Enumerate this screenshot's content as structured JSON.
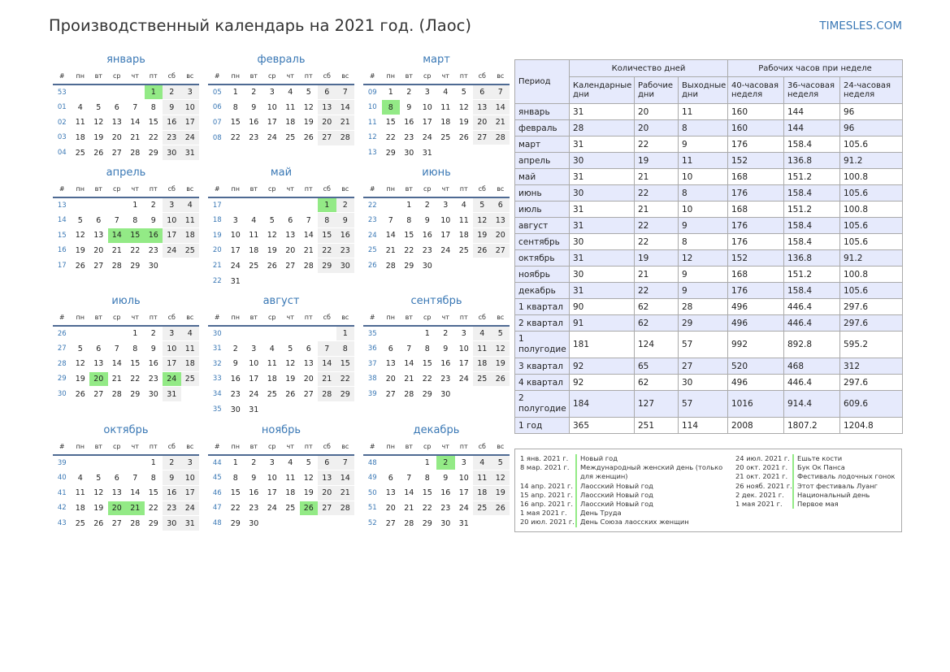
{
  "header": {
    "title": "Производственный календарь на 2021 год. (Лаос)",
    "site": "TIMESLES.COM"
  },
  "weekday_headers": [
    "#",
    "пн",
    "вт",
    "ср",
    "чт",
    "пт",
    "сб",
    "вс"
  ],
  "months": [
    {
      "name": "январь",
      "weeks": [
        {
          "wk": "53",
          "days": [
            "",
            "",
            "",
            "",
            "1",
            "2",
            "3"
          ]
        },
        {
          "wk": "01",
          "days": [
            "4",
            "5",
            "6",
            "7",
            "8",
            "9",
            "10"
          ]
        },
        {
          "wk": "02",
          "days": [
            "11",
            "12",
            "13",
            "14",
            "15",
            "16",
            "17"
          ]
        },
        {
          "wk": "03",
          "days": [
            "18",
            "19",
            "20",
            "21",
            "22",
            "23",
            "24"
          ]
        },
        {
          "wk": "04",
          "days": [
            "25",
            "26",
            "27",
            "28",
            "29",
            "30",
            "31"
          ]
        }
      ],
      "holidays": [
        "1"
      ]
    },
    {
      "name": "февраль",
      "weeks": [
        {
          "wk": "05",
          "days": [
            "1",
            "2",
            "3",
            "4",
            "5",
            "6",
            "7"
          ]
        },
        {
          "wk": "06",
          "days": [
            "8",
            "9",
            "10",
            "11",
            "12",
            "13",
            "14"
          ]
        },
        {
          "wk": "07",
          "days": [
            "15",
            "16",
            "17",
            "18",
            "19",
            "20",
            "21"
          ]
        },
        {
          "wk": "08",
          "days": [
            "22",
            "23",
            "24",
            "25",
            "26",
            "27",
            "28"
          ]
        }
      ],
      "holidays": []
    },
    {
      "name": "март",
      "weeks": [
        {
          "wk": "09",
          "days": [
            "1",
            "2",
            "3",
            "4",
            "5",
            "6",
            "7"
          ]
        },
        {
          "wk": "10",
          "days": [
            "8",
            "9",
            "10",
            "11",
            "12",
            "13",
            "14"
          ]
        },
        {
          "wk": "11",
          "days": [
            "15",
            "16",
            "17",
            "18",
            "19",
            "20",
            "21"
          ]
        },
        {
          "wk": "12",
          "days": [
            "22",
            "23",
            "24",
            "25",
            "26",
            "27",
            "28"
          ]
        },
        {
          "wk": "13",
          "days": [
            "29",
            "30",
            "31",
            "",
            "",
            "",
            ""
          ]
        }
      ],
      "holidays": [
        "8"
      ]
    },
    {
      "name": "апрель",
      "weeks": [
        {
          "wk": "13",
          "days": [
            "",
            "",
            "",
            "1",
            "2",
            "3",
            "4"
          ]
        },
        {
          "wk": "14",
          "days": [
            "5",
            "6",
            "7",
            "8",
            "9",
            "10",
            "11"
          ]
        },
        {
          "wk": "15",
          "days": [
            "12",
            "13",
            "14",
            "15",
            "16",
            "17",
            "18"
          ]
        },
        {
          "wk": "16",
          "days": [
            "19",
            "20",
            "21",
            "22",
            "23",
            "24",
            "25"
          ]
        },
        {
          "wk": "17",
          "days": [
            "26",
            "27",
            "28",
            "29",
            "30",
            "",
            ""
          ]
        }
      ],
      "holidays": [
        "14",
        "15",
        "16"
      ]
    },
    {
      "name": "май",
      "weeks": [
        {
          "wk": "17",
          "days": [
            "",
            "",
            "",
            "",
            "",
            "1",
            "2"
          ]
        },
        {
          "wk": "18",
          "days": [
            "3",
            "4",
            "5",
            "6",
            "7",
            "8",
            "9"
          ]
        },
        {
          "wk": "19",
          "days": [
            "10",
            "11",
            "12",
            "13",
            "14",
            "15",
            "16"
          ]
        },
        {
          "wk": "20",
          "days": [
            "17",
            "18",
            "19",
            "20",
            "21",
            "22",
            "23"
          ]
        },
        {
          "wk": "21",
          "days": [
            "24",
            "25",
            "26",
            "27",
            "28",
            "29",
            "30"
          ]
        },
        {
          "wk": "22",
          "days": [
            "31",
            "",
            "",
            "",
            "",
            "",
            ""
          ]
        }
      ],
      "holidays": [
        "1"
      ]
    },
    {
      "name": "июнь",
      "weeks": [
        {
          "wk": "22",
          "days": [
            "",
            "1",
            "2",
            "3",
            "4",
            "5",
            "6"
          ]
        },
        {
          "wk": "23",
          "days": [
            "7",
            "8",
            "9",
            "10",
            "11",
            "12",
            "13"
          ]
        },
        {
          "wk": "24",
          "days": [
            "14",
            "15",
            "16",
            "17",
            "18",
            "19",
            "20"
          ]
        },
        {
          "wk": "25",
          "days": [
            "21",
            "22",
            "23",
            "24",
            "25",
            "26",
            "27"
          ]
        },
        {
          "wk": "26",
          "days": [
            "28",
            "29",
            "30",
            "",
            "",
            "",
            ""
          ]
        }
      ],
      "holidays": []
    },
    {
      "name": "июль",
      "weeks": [
        {
          "wk": "26",
          "days": [
            "",
            "",
            "",
            "1",
            "2",
            "3",
            "4"
          ]
        },
        {
          "wk": "27",
          "days": [
            "5",
            "6",
            "7",
            "8",
            "9",
            "10",
            "11"
          ]
        },
        {
          "wk": "28",
          "days": [
            "12",
            "13",
            "14",
            "15",
            "16",
            "17",
            "18"
          ]
        },
        {
          "wk": "29",
          "days": [
            "19",
            "20",
            "21",
            "22",
            "23",
            "24",
            "25"
          ]
        },
        {
          "wk": "30",
          "days": [
            "26",
            "27",
            "28",
            "29",
            "30",
            "31",
            ""
          ]
        }
      ],
      "holidays": [
        "20",
        "24"
      ]
    },
    {
      "name": "август",
      "weeks": [
        {
          "wk": "30",
          "days": [
            "",
            "",
            "",
            "",
            "",
            "",
            "1"
          ]
        },
        {
          "wk": "31",
          "days": [
            "2",
            "3",
            "4",
            "5",
            "6",
            "7",
            "8"
          ]
        },
        {
          "wk": "32",
          "days": [
            "9",
            "10",
            "11",
            "12",
            "13",
            "14",
            "15"
          ]
        },
        {
          "wk": "33",
          "days": [
            "16",
            "17",
            "18",
            "19",
            "20",
            "21",
            "22"
          ]
        },
        {
          "wk": "34",
          "days": [
            "23",
            "24",
            "25",
            "26",
            "27",
            "28",
            "29"
          ]
        },
        {
          "wk": "35",
          "days": [
            "30",
            "31",
            "",
            "",
            "",
            "",
            ""
          ]
        }
      ],
      "holidays": []
    },
    {
      "name": "сентябрь",
      "weeks": [
        {
          "wk": "35",
          "days": [
            "",
            "",
            "1",
            "2",
            "3",
            "4",
            "5"
          ]
        },
        {
          "wk": "36",
          "days": [
            "6",
            "7",
            "8",
            "9",
            "10",
            "11",
            "12"
          ]
        },
        {
          "wk": "37",
          "days": [
            "13",
            "14",
            "15",
            "16",
            "17",
            "18",
            "19"
          ]
        },
        {
          "wk": "38",
          "days": [
            "20",
            "21",
            "22",
            "23",
            "24",
            "25",
            "26"
          ]
        },
        {
          "wk": "39",
          "days": [
            "27",
            "28",
            "29",
            "30",
            "",
            "",
            ""
          ]
        }
      ],
      "holidays": []
    },
    {
      "name": "октябрь",
      "weeks": [
        {
          "wk": "39",
          "days": [
            "",
            "",
            "",
            "",
            "1",
            "2",
            "3"
          ]
        },
        {
          "wk": "40",
          "days": [
            "4",
            "5",
            "6",
            "7",
            "8",
            "9",
            "10"
          ]
        },
        {
          "wk": "41",
          "days": [
            "11",
            "12",
            "13",
            "14",
            "15",
            "16",
            "17"
          ]
        },
        {
          "wk": "42",
          "days": [
            "18",
            "19",
            "20",
            "21",
            "22",
            "23",
            "24"
          ]
        },
        {
          "wk": "43",
          "days": [
            "25",
            "26",
            "27",
            "28",
            "29",
            "30",
            "31"
          ]
        }
      ],
      "holidays": [
        "20",
        "21"
      ]
    },
    {
      "name": "ноябрь",
      "weeks": [
        {
          "wk": "44",
          "days": [
            "1",
            "2",
            "3",
            "4",
            "5",
            "6",
            "7"
          ]
        },
        {
          "wk": "45",
          "days": [
            "8",
            "9",
            "10",
            "11",
            "12",
            "13",
            "14"
          ]
        },
        {
          "wk": "46",
          "days": [
            "15",
            "16",
            "17",
            "18",
            "19",
            "20",
            "21"
          ]
        },
        {
          "wk": "47",
          "days": [
            "22",
            "23",
            "24",
            "25",
            "26",
            "27",
            "28"
          ]
        },
        {
          "wk": "48",
          "days": [
            "29",
            "30",
            "",
            "",
            "",
            "",
            ""
          ]
        }
      ],
      "holidays": [
        "26"
      ]
    },
    {
      "name": "декабрь",
      "weeks": [
        {
          "wk": "48",
          "days": [
            "",
            "",
            "1",
            "2",
            "3",
            "4",
            "5"
          ]
        },
        {
          "wk": "49",
          "days": [
            "6",
            "7",
            "8",
            "9",
            "10",
            "11",
            "12"
          ]
        },
        {
          "wk": "50",
          "days": [
            "13",
            "14",
            "15",
            "16",
            "17",
            "18",
            "19"
          ]
        },
        {
          "wk": "51",
          "days": [
            "20",
            "21",
            "22",
            "23",
            "24",
            "25",
            "26"
          ]
        },
        {
          "wk": "52",
          "days": [
            "27",
            "28",
            "29",
            "30",
            "31",
            "",
            ""
          ]
        }
      ],
      "holidays": [
        "2"
      ]
    }
  ],
  "summary": {
    "h_period": "Период",
    "h_days": "Количество дней",
    "h_hours": "Рабочих часов при неделе",
    "h_calendar": "Календарные дни",
    "h_work": "Рабочие дни",
    "h_off": "Выходные дни",
    "h_40": "40-часовая неделя",
    "h_36": "36-часовая неделя",
    "h_24": "24-часовая неделя",
    "rows": [
      {
        "period": "январь",
        "cells": [
          "31",
          "20",
          "11",
          "160",
          "144",
          "96"
        ]
      },
      {
        "period": "февраль",
        "cells": [
          "28",
          "20",
          "8",
          "160",
          "144",
          "96"
        ]
      },
      {
        "period": "март",
        "cells": [
          "31",
          "22",
          "9",
          "176",
          "158.4",
          "105.6"
        ]
      },
      {
        "period": "апрель",
        "cells": [
          "30",
          "19",
          "11",
          "152",
          "136.8",
          "91.2"
        ]
      },
      {
        "period": "май",
        "cells": [
          "31",
          "21",
          "10",
          "168",
          "151.2",
          "100.8"
        ]
      },
      {
        "period": "июнь",
        "cells": [
          "30",
          "22",
          "8",
          "176",
          "158.4",
          "105.6"
        ]
      },
      {
        "period": "июль",
        "cells": [
          "31",
          "21",
          "10",
          "168",
          "151.2",
          "100.8"
        ]
      },
      {
        "period": "август",
        "cells": [
          "31",
          "22",
          "9",
          "176",
          "158.4",
          "105.6"
        ]
      },
      {
        "period": "сентябрь",
        "cells": [
          "30",
          "22",
          "8",
          "176",
          "158.4",
          "105.6"
        ]
      },
      {
        "period": "октябрь",
        "cells": [
          "31",
          "19",
          "12",
          "152",
          "136.8",
          "91.2"
        ]
      },
      {
        "period": "ноябрь",
        "cells": [
          "30",
          "21",
          "9",
          "168",
          "151.2",
          "100.8"
        ]
      },
      {
        "period": "декабрь",
        "cells": [
          "31",
          "22",
          "9",
          "176",
          "158.4",
          "105.6"
        ]
      },
      {
        "period": "1 квартал",
        "cells": [
          "90",
          "62",
          "28",
          "496",
          "446.4",
          "297.6"
        ]
      },
      {
        "period": "2 квартал",
        "cells": [
          "91",
          "62",
          "29",
          "496",
          "446.4",
          "297.6"
        ]
      },
      {
        "period": "1 полугодие",
        "cells": [
          "181",
          "124",
          "57",
          "992",
          "892.8",
          "595.2"
        ]
      },
      {
        "period": "3 квартал",
        "cells": [
          "92",
          "65",
          "27",
          "520",
          "468",
          "312"
        ]
      },
      {
        "period": "4 квартал",
        "cells": [
          "92",
          "62",
          "30",
          "496",
          "446.4",
          "297.6"
        ]
      },
      {
        "period": "2 полугодие",
        "cells": [
          "184",
          "127",
          "57",
          "1016",
          "914.4",
          "609.6"
        ]
      },
      {
        "period": "1 год",
        "cells": [
          "365",
          "251",
          "114",
          "2008",
          "1807.2",
          "1204.8"
        ]
      }
    ]
  },
  "holidays_list": {
    "left": [
      {
        "date": "1 янв. 2021 г.",
        "name": "Новый год"
      },
      {
        "date": "8 мар. 2021 г.",
        "name": "Международный женский день (только для женщин)"
      },
      {
        "date": "14 апр. 2021 г.",
        "name": "Лаосский Новый год"
      },
      {
        "date": "15 апр. 2021 г.",
        "name": "Лаосский Новый год"
      },
      {
        "date": "16 апр. 2021 г.",
        "name": "Лаосский Новый год"
      },
      {
        "date": "1 мая 2021 г.",
        "name": "День Труда"
      },
      {
        "date": "20 июл. 2021 г.",
        "name": "День Союза лаосских женщин"
      }
    ],
    "right": [
      {
        "date": "24 июл. 2021 г.",
        "name": "Ешьте кости"
      },
      {
        "date": "20 окт. 2021 г.",
        "name": "Бук Ок Панса"
      },
      {
        "date": "21 окт. 2021 г.",
        "name": "Фестиваль лодочных гонок"
      },
      {
        "date": "26 нояб. 2021 г.",
        "name": "Этот фестиваль Луанг"
      },
      {
        "date": "2 дек. 2021 г.",
        "name": "Национальный день"
      },
      {
        "date": "1 мая 2021 г.",
        "name": "Первое мая"
      }
    ]
  }
}
